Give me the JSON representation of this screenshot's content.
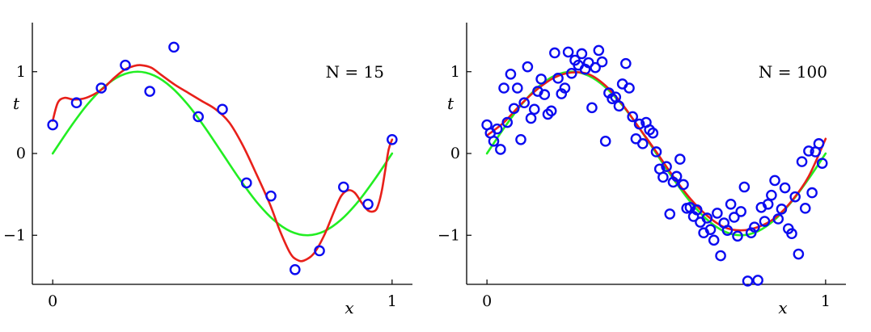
{
  "chart_data": [
    {
      "type": "scatter",
      "title": "",
      "xlabel": "x",
      "ylabel": "t",
      "annotation": "N = 15",
      "xlim": [
        -0.06,
        1.06
      ],
      "ylim": [
        -1.6,
        1.6
      ],
      "xticks": [
        {
          "value": 0,
          "label": "0"
        },
        {
          "value": 1,
          "label": "1"
        }
      ],
      "yticks": [
        {
          "value": -1,
          "label": "−1"
        },
        {
          "value": 0,
          "label": "0"
        },
        {
          "value": 1,
          "label": "1"
        }
      ],
      "grid": false,
      "colors": {
        "points": "#0b0bf0",
        "truth": "#22ee22",
        "fit": "#e8201a"
      },
      "points": {
        "name": "data",
        "x": [
          0.0,
          0.07,
          0.143,
          0.214,
          0.286,
          0.357,
          0.429,
          0.5,
          0.571,
          0.643,
          0.714,
          0.786,
          0.857,
          0.929,
          1.0
        ],
        "y": [
          0.35,
          0.62,
          0.8,
          1.08,
          0.76,
          1.3,
          0.45,
          0.54,
          -0.36,
          -0.52,
          -1.42,
          -1.19,
          -0.41,
          -0.62,
          0.17
        ]
      },
      "series": [
        {
          "kind": "truth",
          "x": [
            0.0,
            0.05,
            0.1,
            0.15,
            0.2,
            0.25,
            0.3,
            0.35,
            0.4,
            0.45,
            0.5,
            0.55,
            0.6,
            0.65,
            0.7,
            0.75,
            0.8,
            0.85,
            0.9,
            0.95,
            1.0
          ],
          "y": [
            0.0,
            0.309,
            0.588,
            0.809,
            0.951,
            1.0,
            0.951,
            0.809,
            0.588,
            0.309,
            0.0,
            -0.309,
            -0.588,
            -0.809,
            -0.951,
            -1.0,
            -0.951,
            -0.809,
            -0.588,
            -0.309,
            0.0
          ]
        },
        {
          "kind": "fit",
          "x": [
            0.0,
            0.015,
            0.035,
            0.06,
            0.09,
            0.12,
            0.15,
            0.18,
            0.21,
            0.24,
            0.26,
            0.29,
            0.32,
            0.36,
            0.4,
            0.44,
            0.48,
            0.52,
            0.56,
            0.6,
            0.64,
            0.67,
            0.7,
            0.72,
            0.74,
            0.77,
            0.8,
            0.83,
            0.85,
            0.87,
            0.89,
            0.91,
            0.93,
            0.95,
            0.96,
            0.97,
            0.98,
            0.99,
            1.0
          ],
          "y": [
            0.4,
            0.62,
            0.68,
            0.66,
            0.67,
            0.72,
            0.8,
            0.92,
            1.02,
            1.07,
            1.08,
            1.05,
            0.96,
            0.84,
            0.74,
            0.64,
            0.54,
            0.38,
            0.1,
            -0.25,
            -0.62,
            -0.95,
            -1.22,
            -1.3,
            -1.31,
            -1.22,
            -1.0,
            -0.7,
            -0.52,
            -0.45,
            -0.48,
            -0.6,
            -0.7,
            -0.7,
            -0.62,
            -0.45,
            -0.2,
            0.05,
            0.17
          ]
        }
      ]
    },
    {
      "type": "scatter",
      "title": "",
      "xlabel": "x",
      "ylabel": "t",
      "annotation": "N = 100",
      "xlim": [
        -0.06,
        1.06
      ],
      "ylim": [
        -1.6,
        1.6
      ],
      "xticks": [
        {
          "value": 0,
          "label": "0"
        },
        {
          "value": 1,
          "label": "1"
        }
      ],
      "yticks": [
        {
          "value": -1,
          "label": "−1"
        },
        {
          "value": 0,
          "label": "0"
        },
        {
          "value": 1,
          "label": "1"
        }
      ],
      "grid": false,
      "colors": {
        "points": "#0b0bf0",
        "truth": "#22ee22",
        "fit": "#e8201a"
      },
      "points": {
        "name": "data",
        "x": [
          0.0,
          0.01,
          0.02,
          0.03,
          0.04,
          0.05,
          0.06,
          0.07,
          0.08,
          0.09,
          0.1,
          0.11,
          0.12,
          0.13,
          0.14,
          0.15,
          0.16,
          0.17,
          0.18,
          0.19,
          0.2,
          0.21,
          0.22,
          0.23,
          0.24,
          0.25,
          0.26,
          0.27,
          0.28,
          0.29,
          0.3,
          0.31,
          0.32,
          0.33,
          0.34,
          0.35,
          0.36,
          0.37,
          0.38,
          0.39,
          0.4,
          0.41,
          0.42,
          0.43,
          0.44,
          0.45,
          0.46,
          0.47,
          0.48,
          0.49,
          0.5,
          0.51,
          0.52,
          0.53,
          0.54,
          0.55,
          0.56,
          0.57,
          0.58,
          0.59,
          0.6,
          0.61,
          0.62,
          0.63,
          0.64,
          0.65,
          0.66,
          0.67,
          0.68,
          0.69,
          0.7,
          0.71,
          0.72,
          0.73,
          0.74,
          0.75,
          0.76,
          0.77,
          0.78,
          0.79,
          0.8,
          0.81,
          0.82,
          0.83,
          0.84,
          0.85,
          0.86,
          0.87,
          0.88,
          0.89,
          0.9,
          0.91,
          0.92,
          0.93,
          0.94,
          0.95,
          0.96,
          0.97,
          0.98,
          0.99
        ],
        "y": [
          0.35,
          0.25,
          0.15,
          0.3,
          0.05,
          0.8,
          0.38,
          0.97,
          0.55,
          0.8,
          0.17,
          0.62,
          1.06,
          0.43,
          0.54,
          0.76,
          0.91,
          0.72,
          0.48,
          0.52,
          1.23,
          0.92,
          0.73,
          0.8,
          1.24,
          0.98,
          1.14,
          1.08,
          1.22,
          1.03,
          1.11,
          0.56,
          1.05,
          1.26,
          1.12,
          0.15,
          0.74,
          0.67,
          0.69,
          0.58,
          0.85,
          1.1,
          0.8,
          0.45,
          0.18,
          0.36,
          0.12,
          0.38,
          0.29,
          0.25,
          0.02,
          -0.19,
          -0.29,
          -0.16,
          -0.74,
          -0.35,
          -0.28,
          -0.07,
          -0.38,
          -0.67,
          -0.66,
          -0.77,
          -0.69,
          -0.84,
          -0.97,
          -0.79,
          -0.93,
          -1.06,
          -0.73,
          -1.25,
          -0.85,
          -0.94,
          -0.62,
          -0.78,
          -1.01,
          -0.71,
          -0.41,
          -1.56,
          -0.97,
          -0.9,
          -1.55,
          -0.66,
          -0.83,
          -0.62,
          -0.51,
          -0.33,
          -0.8,
          -0.68,
          -0.42,
          -0.92,
          -0.98,
          -0.53,
          -1.23,
          -0.1,
          -0.67,
          0.03,
          -0.48,
          0.02,
          0.12,
          -0.12
        ]
      },
      "series": [
        {
          "kind": "truth",
          "x": [
            0.0,
            0.05,
            0.1,
            0.15,
            0.2,
            0.25,
            0.3,
            0.35,
            0.4,
            0.45,
            0.5,
            0.55,
            0.6,
            0.65,
            0.7,
            0.75,
            0.8,
            0.85,
            0.9,
            0.95,
            1.0
          ],
          "y": [
            0.0,
            0.309,
            0.588,
            0.809,
            0.951,
            1.0,
            0.951,
            0.809,
            0.588,
            0.309,
            0.0,
            -0.309,
            -0.588,
            -0.809,
            -0.951,
            -1.0,
            -0.951,
            -0.809,
            -0.588,
            -0.309,
            0.0
          ]
        },
        {
          "kind": "fit",
          "x": [
            0.0,
            0.05,
            0.1,
            0.15,
            0.2,
            0.25,
            0.3,
            0.35,
            0.4,
            0.45,
            0.5,
            0.55,
            0.6,
            0.65,
            0.7,
            0.75,
            0.8,
            0.85,
            0.9,
            0.95,
            1.0
          ],
          "y": [
            0.22,
            0.38,
            0.6,
            0.79,
            0.93,
            0.99,
            0.97,
            0.83,
            0.6,
            0.31,
            0.02,
            -0.28,
            -0.55,
            -0.76,
            -0.9,
            -0.94,
            -0.9,
            -0.79,
            -0.58,
            -0.28,
            0.18
          ]
        }
      ]
    }
  ]
}
